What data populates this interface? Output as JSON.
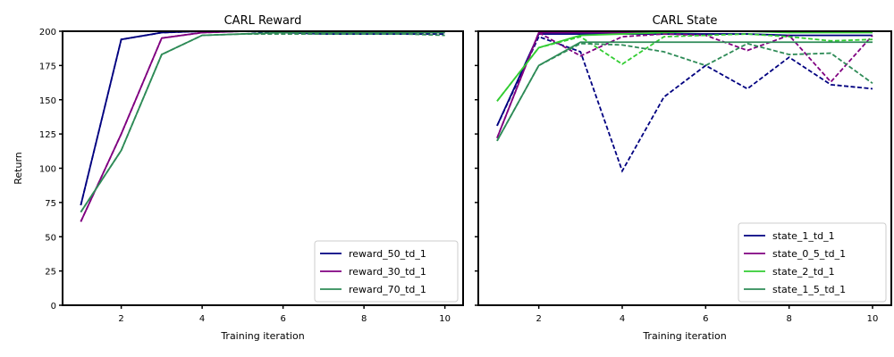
{
  "chart_data": [
    {
      "type": "line",
      "title": "CARL Reward",
      "xlabel": "Training iteration",
      "ylabel": "Return",
      "xlim": [
        0.55,
        10.45
      ],
      "ylim": [
        0,
        200
      ],
      "xticks": [
        2,
        4,
        6,
        8,
        10
      ],
      "yticks": [
        0,
        25,
        50,
        75,
        100,
        125,
        150,
        175,
        200
      ],
      "legend_position": "lower right",
      "x": [
        1,
        2,
        3,
        4,
        5,
        6,
        7,
        8,
        9,
        10
      ],
      "series": [
        {
          "name": "reward_50_td_1",
          "color": "#000080",
          "style": "solid",
          "values": [
            73,
            194,
            199,
            200,
            200,
            200,
            200,
            200,
            200,
            200
          ]
        },
        {
          "name": "reward_50_td_1 (dashed)",
          "color": "#000080",
          "style": "dashed",
          "legend": false,
          "values": [
            73,
            194,
            199,
            200,
            200,
            199,
            198,
            198,
            198,
            198
          ]
        },
        {
          "name": "reward_30_td_1",
          "color": "#800080",
          "style": "solid",
          "values": [
            61,
            125,
            195,
            199,
            200,
            200,
            200,
            200,
            200,
            200
          ]
        },
        {
          "name": "reward_30_td_1 (dashed)",
          "color": "#800080",
          "style": "dashed",
          "legend": false,
          "values": [
            61,
            125,
            195,
            199,
            200,
            200,
            199,
            199,
            199,
            199
          ]
        },
        {
          "name": "reward_70_td_1",
          "color": "#2e8b57",
          "style": "solid",
          "values": [
            68,
            113,
            183,
            197,
            198,
            199,
            199,
            199,
            199,
            199
          ]
        },
        {
          "name": "reward_70_td_1 (dashed)",
          "color": "#2e8b57",
          "style": "dashed",
          "legend": false,
          "values": [
            68,
            113,
            183,
            197,
            198,
            198,
            198,
            198,
            198,
            197
          ]
        }
      ]
    },
    {
      "type": "line",
      "title": "CARL State",
      "xlabel": "Training iteration",
      "ylabel": "",
      "xlim": [
        0.55,
        10.45
      ],
      "ylim": [
        0,
        200
      ],
      "xticks": [
        2,
        4,
        6,
        8,
        10
      ],
      "legend_position": "lower right",
      "x": [
        1,
        2,
        3,
        4,
        5,
        6,
        7,
        8,
        9,
        10
      ],
      "series": [
        {
          "name": "state_1_td_1",
          "color": "#000080",
          "style": "solid",
          "values": [
            131,
            198,
            198,
            198,
            198,
            198,
            198,
            197,
            197,
            197
          ]
        },
        {
          "name": "state_1_td_1 (dashed)",
          "color": "#000080",
          "style": "dashed",
          "legend": false,
          "values": [
            131,
            196,
            185,
            98,
            152,
            175,
            158,
            181,
            161,
            158
          ]
        },
        {
          "name": "state_0_5_td_1",
          "color": "#800080",
          "style": "solid",
          "values": [
            122,
            199,
            199,
            199,
            200,
            200,
            200,
            200,
            200,
            200
          ]
        },
        {
          "name": "state_0_5_td_1 (dashed)",
          "color": "#800080",
          "style": "dashed",
          "legend": false,
          "values": [
            122,
            199,
            182,
            196,
            198,
            197,
            186,
            197,
            163,
            197
          ]
        },
        {
          "name": "state_2_td_1",
          "color": "#32cd32",
          "style": "solid",
          "values": [
            149,
            188,
            197,
            198,
            199,
            200,
            200,
            199,
            199,
            199
          ]
        },
        {
          "name": "state_2_td_1 (dashed)",
          "color": "#32cd32",
          "style": "dashed",
          "legend": false,
          "values": [
            149,
            188,
            196,
            176,
            196,
            197,
            198,
            196,
            193,
            194
          ]
        },
        {
          "name": "state_1_5_td_1",
          "color": "#2e8b57",
          "style": "solid",
          "values": [
            120,
            175,
            192,
            192,
            192,
            192,
            192,
            192,
            192,
            192
          ]
        },
        {
          "name": "state_1_5_td_1 (dashed)",
          "color": "#2e8b57",
          "style": "dashed",
          "legend": false,
          "values": [
            120,
            175,
            191,
            190,
            185,
            175,
            191,
            183,
            184,
            162
          ]
        }
      ]
    }
  ]
}
